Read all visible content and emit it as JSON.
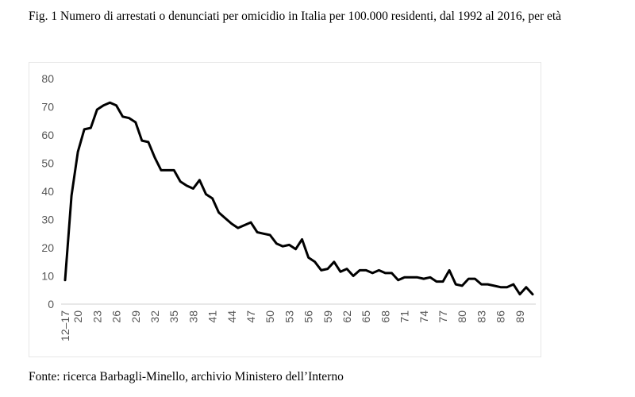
{
  "caption": "Fig. 1 Numero di arrestati o denunciati per omicidio in Italia per 100.000 residenti, dal 1992 al 2016, per età",
  "source": "Fonte: ricerca Barbagli-Minello, archivio Ministero dell’Interno",
  "chart_data": {
    "type": "line",
    "title": "Numero di arrestati o denunciati per omicidio in Italia per 100.000 residenti, dal 1992 al 2016, per età",
    "xlabel": "",
    "ylabel": "",
    "ylim": [
      0,
      80
    ],
    "yticks": [
      "0",
      "10",
      "20",
      "30",
      "40",
      "50",
      "60",
      "70",
      "80"
    ],
    "grid": false,
    "legend": "none",
    "line_color": "#000000",
    "x": [
      "12-17",
      "18",
      "19",
      "20",
      "21",
      "22",
      "23",
      "24",
      "25",
      "26",
      "27",
      "28",
      "29",
      "30",
      "31",
      "32",
      "33",
      "34",
      "35",
      "36",
      "37",
      "38",
      "39",
      "40",
      "41",
      "42",
      "43",
      "44",
      "45",
      "46",
      "47",
      "48",
      "49",
      "50",
      "51",
      "52",
      "53",
      "54",
      "55",
      "56",
      "57",
      "58",
      "59",
      "60",
      "61",
      "62",
      "63",
      "64",
      "65",
      "66",
      "67",
      "68",
      "69",
      "70",
      "71",
      "72",
      "73",
      "74",
      "75",
      "76",
      "77",
      "78",
      "79",
      "80",
      "81",
      "82",
      "83",
      "84",
      "85",
      "86",
      "87",
      "88",
      "89",
      "90"
    ],
    "values": [
      8.5,
      38.5,
      54,
      62,
      62.5,
      69,
      70.5,
      71.5,
      70.5,
      66.5,
      66,
      64.5,
      58,
      57.5,
      52,
      47.5,
      47.5,
      47.5,
      43.5,
      42,
      41,
      44,
      39,
      37.5,
      32.5,
      30.5,
      28.5,
      27,
      28,
      29,
      25.5,
      25,
      24.5,
      21.5,
      20.5,
      21,
      19.5,
      23,
      16.5,
      15,
      12,
      12.5,
      15,
      11.5,
      12.5,
      10,
      12,
      12,
      11,
      12,
      11,
      11,
      8.5,
      9.5,
      9.5,
      9.5,
      9,
      9.5,
      8,
      8,
      12,
      7,
      6.5,
      9,
      9,
      7,
      7,
      6.5,
      6,
      6,
      7,
      3.5,
      6,
      3.5
    ],
    "tick_labels": [
      "12–17",
      "20",
      "23",
      "26",
      "29",
      "32",
      "35",
      "38",
      "41",
      "44",
      "47",
      "50",
      "53",
      "56",
      "59",
      "62",
      "65",
      "68",
      "71",
      "74",
      "77",
      "80",
      "83",
      "86",
      "89"
    ]
  }
}
